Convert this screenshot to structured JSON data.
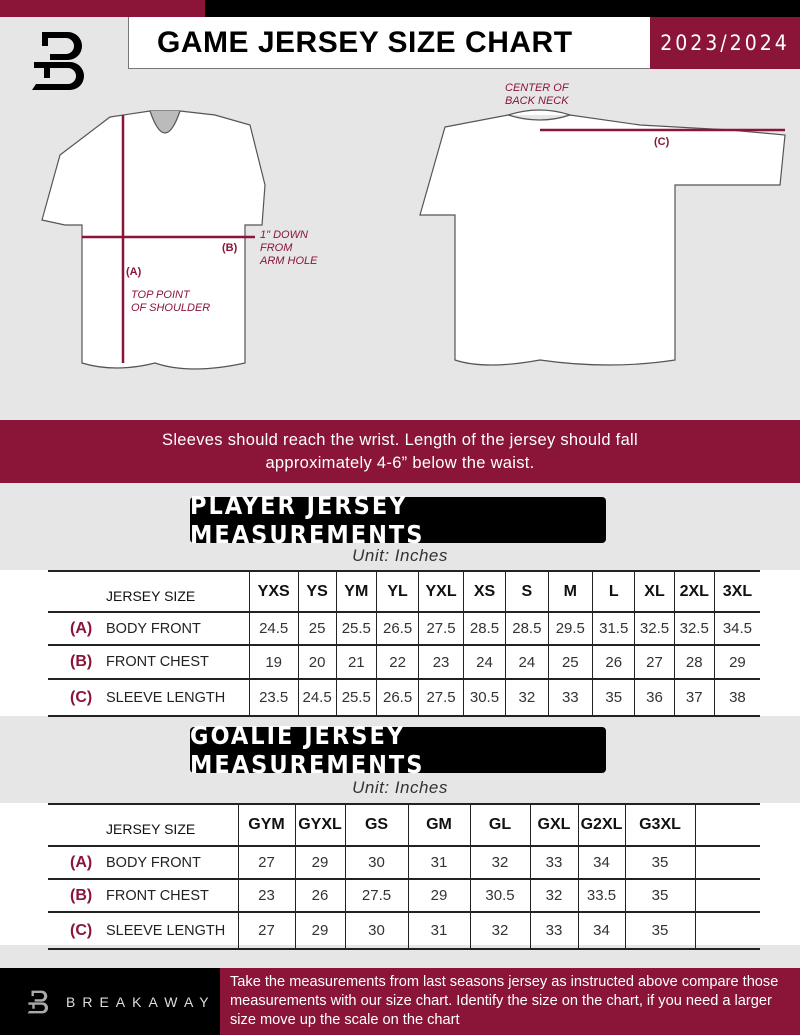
{
  "header": {
    "title": "GAME JERSEY SIZE CHART",
    "season": "2023/2024",
    "logo_letter": "B"
  },
  "colors": {
    "brand": "#8a1538",
    "dark": "#000000",
    "background": "#e6e6e7"
  },
  "diagram": {
    "center_back_neck": "CENTER OF\nBACK NECK",
    "label_a": "(A)",
    "label_b": "(B)",
    "label_c": "(C)",
    "top_point": "TOP POINT\nOF SHOULDER",
    "down_from_arm": "1\" DOWN\nFROM\nARM HOLE"
  },
  "band": {
    "line1": "Sleeves should reach the wrist. Length of the jersey should fall",
    "line2": "approximately 4-6” below the waist."
  },
  "player": {
    "title": "PLAYER JERSEY MEASUREMENTS",
    "unit": "Unit: Inches",
    "header_label": "JERSEY SIZE",
    "sizes": [
      "YXS",
      "YS",
      "YM",
      "YL",
      "YXL",
      "XS",
      "S",
      "M",
      "L",
      "XL",
      "2XL",
      "3XL"
    ],
    "rows": [
      {
        "letter": "(A)",
        "label": "BODY FRONT",
        "values": [
          "24.5",
          "25",
          "25.5",
          "26.5",
          "27.5",
          "28.5",
          "28.5",
          "29.5",
          "31.5",
          "32.5",
          "32.5",
          "34.5"
        ]
      },
      {
        "letter": "(B)",
        "label": "FRONT CHEST",
        "values": [
          "19",
          "20",
          "21",
          "22",
          "23",
          "24",
          "24",
          "25",
          "26",
          "27",
          "28",
          "29"
        ]
      },
      {
        "letter": "(C)",
        "label": "SLEEVE LENGTH",
        "values": [
          "23.5",
          "24.5",
          "25.5",
          "26.5",
          "27.5",
          "30.5",
          "32",
          "33",
          "35",
          "36",
          "37",
          "38"
        ]
      }
    ]
  },
  "goalie": {
    "title": "GOALIE JERSEY MEASUREMENTS",
    "unit": "Unit: Inches",
    "header_label": "JERSEY SIZE",
    "sizes": [
      "GYM",
      "GYXL",
      "GS",
      "GM",
      "GL",
      "GXL",
      "G2XL",
      "G3XL",
      ""
    ],
    "rows": [
      {
        "letter": "(A)",
        "label": "BODY FRONT",
        "values": [
          "27",
          "29",
          "30",
          "31",
          "32",
          "33",
          "34",
          "35",
          ""
        ]
      },
      {
        "letter": "(B)",
        "label": "FRONT CHEST",
        "values": [
          "23",
          "26",
          "27.5",
          "29",
          "30.5",
          "32",
          "33.5",
          "35",
          ""
        ]
      },
      {
        "letter": "(C)",
        "label": "SLEEVE LENGTH",
        "values": [
          "27",
          "29",
          "30",
          "31",
          "32",
          "33",
          "34",
          "35",
          ""
        ]
      }
    ]
  },
  "footer": {
    "brand": "BREAKAWAY",
    "note": "Take the measurements from last seasons jersey as instructed above compare those measurements  with our size chart. Identify the size on the chart, if you need a larger size move up the scale on the chart"
  }
}
